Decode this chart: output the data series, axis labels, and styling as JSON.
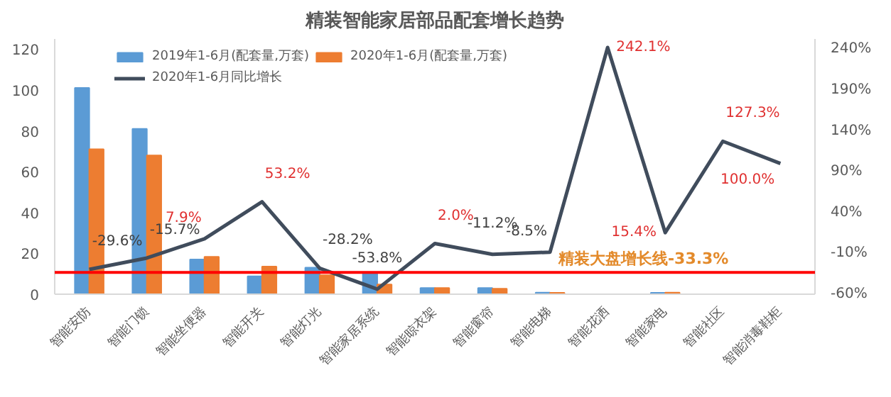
{
  "chart_data": {
    "type": "bar",
    "title": "精装智能家居部品配套增长趋势",
    "categories": [
      "智能安防",
      "智能门锁",
      "智能坐便器",
      "智能开关",
      "智能灯光",
      "智能家居系统",
      "智能晾衣架",
      "智能窗帘",
      "智能电梯",
      "智能花洒",
      "智能家电",
      "智能社区",
      "智能消毒鞋柜"
    ],
    "series": [
      {
        "name": "2019年1-6月(配套量,万套)",
        "color": "#5b9bd5",
        "values": [
          101,
          81,
          17,
          8.8,
          13,
          10.5,
          3,
          3,
          0.8,
          null,
          0.7,
          null,
          null
        ]
      },
      {
        "name": "2020年1-6月(配套量,万套)",
        "color": "#ed7d31",
        "values": [
          71,
          68,
          18.3,
          13.5,
          9.3,
          4.8,
          3,
          2.7,
          0.7,
          null,
          0.8,
          null,
          null
        ]
      },
      {
        "name": "2020年1-6月同比增长",
        "type": "line",
        "axis": "y2",
        "color": "#404c5c",
        "values": [
          -29.6,
          -15.7,
          7.9,
          53.2,
          -28.2,
          -53.8,
          2.0,
          -11.2,
          -8.5,
          242.1,
          15.4,
          127.3,
          100.0
        ],
        "value_labels": [
          "-29.6%",
          "-15.7%",
          "7.9%",
          "53.2%",
          "-28.2%",
          "-53.8%",
          "2.0%",
          "-11.2%",
          "-8.5%",
          "242.1%",
          "15.4%",
          "127.3%",
          "100.0%"
        ]
      }
    ],
    "ylim": [
      0,
      125
    ],
    "yticks": [
      0,
      20,
      40,
      60,
      80,
      100,
      120
    ],
    "y2lim": [
      -60,
      252.5
    ],
    "y2ticks": [
      {
        "value": -60,
        "label": "-60%"
      },
      {
        "value": -10,
        "label": "-10%"
      },
      {
        "value": 40,
        "label": "40%"
      },
      {
        "value": 90,
        "label": "90%"
      },
      {
        "value": 140,
        "label": "140%"
      },
      {
        "value": 190,
        "label": "190%"
      },
      {
        "value": 240,
        "label": "240%"
      }
    ],
    "ref_lines": [
      {
        "axis": "y2",
        "value": -33.3,
        "label": "精装大盘增长线-33.3%",
        "color": "#ff0000"
      }
    ],
    "legend": "top left",
    "grid": false
  }
}
